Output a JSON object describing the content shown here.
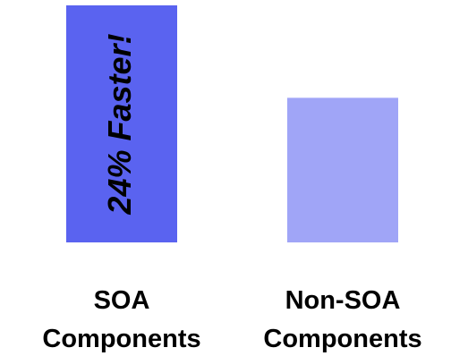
{
  "chart_data": {
    "type": "bar",
    "title": "",
    "xlabel": "",
    "ylabel": "",
    "categories": [
      [
        "SOA",
        "Components"
      ],
      [
        "Non-SOA",
        "Components"
      ]
    ],
    "values": [
      100,
      61
    ],
    "ylim": [
      0,
      100
    ],
    "colors": [
      "#5a63f0",
      "#a0a5f7"
    ],
    "annotation": {
      "text": "24% Faster!",
      "category_index": 0
    },
    "grid": false,
    "axes_visible": false,
    "legend": "none"
  }
}
